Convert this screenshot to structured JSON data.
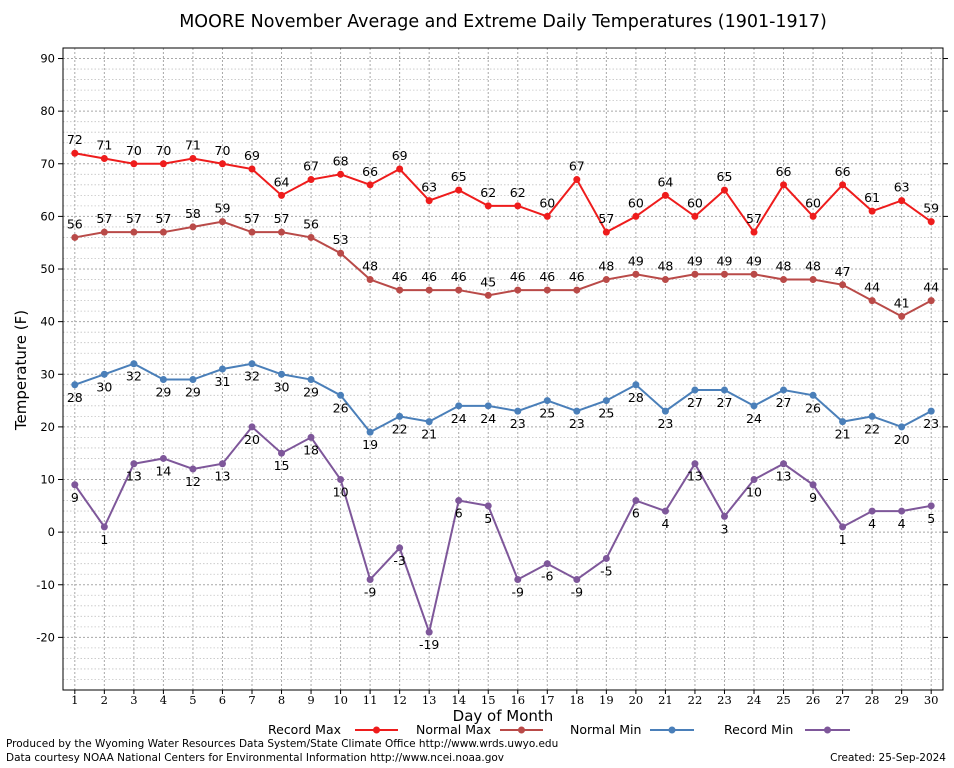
{
  "chart_data": {
    "type": "line",
    "title": "MOORE November Average and Extreme Daily Temperatures (1901-1917)",
    "xlabel": "Day of Month",
    "ylabel": "Temperature (F)",
    "x": [
      1,
      2,
      3,
      4,
      5,
      6,
      7,
      8,
      9,
      10,
      11,
      12,
      13,
      14,
      15,
      16,
      17,
      18,
      19,
      20,
      21,
      22,
      23,
      24,
      25,
      26,
      27,
      28,
      29,
      30
    ],
    "xlim": [
      0.6,
      30.4
    ],
    "ylim": [
      -30,
      92
    ],
    "yticks": [
      -20,
      -10,
      0,
      10,
      20,
      30,
      40,
      50,
      60,
      70,
      80,
      90
    ],
    "grid": true,
    "legend_position": "bottom",
    "series": [
      {
        "name": "Record Max",
        "color": "#ee1c1c",
        "label_position": "above",
        "values": [
          72,
          71,
          70,
          70,
          71,
          70,
          69,
          64,
          67,
          68,
          66,
          69,
          63,
          65,
          62,
          62,
          60,
          67,
          57,
          60,
          64,
          60,
          65,
          57,
          66,
          60,
          66,
          61,
          63,
          59
        ]
      },
      {
        "name": "Normal Max",
        "color": "#b94a48",
        "label_position": "above",
        "values": [
          56,
          57,
          57,
          57,
          58,
          59,
          57,
          57,
          56,
          53,
          48,
          46,
          46,
          46,
          45,
          46,
          46,
          46,
          48,
          49,
          48,
          49,
          49,
          49,
          48,
          48,
          47,
          44,
          41,
          44
        ]
      },
      {
        "name": "Normal Min",
        "color": "#4a7fb9",
        "label_position": "below",
        "values": [
          28,
          30,
          32,
          29,
          29,
          31,
          32,
          30,
          29,
          26,
          19,
          22,
          21,
          24,
          24,
          23,
          25,
          23,
          25,
          28,
          23,
          27,
          27,
          24,
          27,
          26,
          21,
          22,
          20,
          23
        ]
      },
      {
        "name": "Record Min",
        "color": "#7e579a",
        "label_position": "below",
        "values": [
          9,
          1,
          13,
          14,
          12,
          13,
          20,
          15,
          18,
          10,
          -9,
          -3,
          -19,
          6,
          5,
          -9,
          -6,
          -9,
          -5,
          6,
          4,
          13,
          3,
          10,
          13,
          9,
          1,
          4,
          4,
          5
        ]
      }
    ]
  },
  "footer": {
    "produced_by": "Produced by the Wyoming Water Resources Data System/State Climate Office http://www.wrds.uwyo.edu",
    "courtesy": "Data courtesy NOAA National Centers for Environmental Information http://www.ncei.noaa.gov",
    "created": "Created:  25-Sep-2024"
  }
}
